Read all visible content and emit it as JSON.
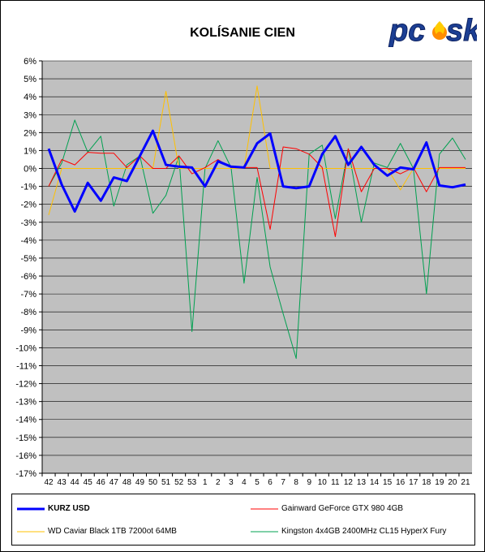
{
  "chart_data": {
    "type": "line",
    "title": "KOLÍSANIE CIEN",
    "xlabel": "",
    "ylabel": "",
    "ylim": [
      -17,
      6
    ],
    "y_tick_step": 1,
    "y_tick_format": "percent",
    "grid": "horizontal",
    "legend_position": "bottom",
    "categories": [
      "42",
      "43",
      "44",
      "45",
      "46",
      "47",
      "48",
      "49",
      "50",
      "51",
      "52",
      "53",
      "1",
      "2",
      "3",
      "4",
      "5",
      "6",
      "7",
      "8",
      "9",
      "10",
      "11",
      "12",
      "13",
      "14",
      "15",
      "16",
      "17",
      "18",
      "19",
      "20",
      "21"
    ],
    "series": [
      {
        "name": "KURZ USD",
        "color": "#0000ff",
        "width": 3,
        "values": [
          1.1,
          -0.9,
          -2.4,
          -0.8,
          -1.8,
          -0.5,
          -0.7,
          0.7,
          2.1,
          0.2,
          0.1,
          0.05,
          -1.0,
          0.4,
          0.1,
          0.05,
          1.4,
          1.95,
          -1.0,
          -1.1,
          -1.0,
          0.8,
          1.8,
          0.2,
          1.2,
          0.2,
          -0.4,
          0.05,
          -0.05,
          1.45,
          -0.95,
          -1.05,
          -0.9
        ]
      },
      {
        "name": "Gainward GeForce GTX 980 4GB",
        "color": "#ff0000",
        "width": 1,
        "values": [
          -1.0,
          0.5,
          0.2,
          0.9,
          0.85,
          0.85,
          0.05,
          0.7,
          0.0,
          0.0,
          0.7,
          -0.3,
          0.05,
          0.5,
          0.05,
          0.05,
          0.05,
          -3.4,
          1.2,
          1.1,
          0.8,
          0.05,
          -3.8,
          1.1,
          -1.3,
          0.0,
          0.0,
          -0.3,
          0.05,
          -1.3,
          0.05,
          0.05,
          0.05
        ]
      },
      {
        "name": "WD Caviar Black 1TB 7200ot 64MB",
        "color": "#ffc000",
        "width": 1,
        "values": [
          -2.6,
          0.0,
          0.0,
          0.0,
          0.0,
          0.0,
          0.0,
          0.0,
          0.0,
          4.3,
          0.0,
          0.0,
          0.0,
          0.0,
          0.0,
          0.0,
          4.6,
          0.0,
          0.0,
          0.0,
          0.0,
          0.0,
          0.0,
          0.0,
          0.0,
          0.0,
          0.0,
          -1.2,
          0.0,
          0.0,
          0.0,
          0.0,
          0.0
        ]
      },
      {
        "name": "Kingston 4x4GB 2400MHz CL15 HyperX Fury",
        "color": "#00a050",
        "width": 1,
        "values": [
          -1.0,
          0.3,
          2.7,
          0.9,
          1.8,
          -2.1,
          0.2,
          0.7,
          -2.5,
          -1.5,
          0.7,
          -9.1,
          0.0,
          1.55,
          0.05,
          -6.4,
          -0.5,
          -5.5,
          -8.1,
          -10.6,
          0.8,
          1.3,
          -2.8,
          1.1,
          -3.0,
          0.3,
          0.05,
          1.4,
          0.0,
          -7.0,
          0.8,
          1.7,
          0.5
        ]
      }
    ]
  }
}
